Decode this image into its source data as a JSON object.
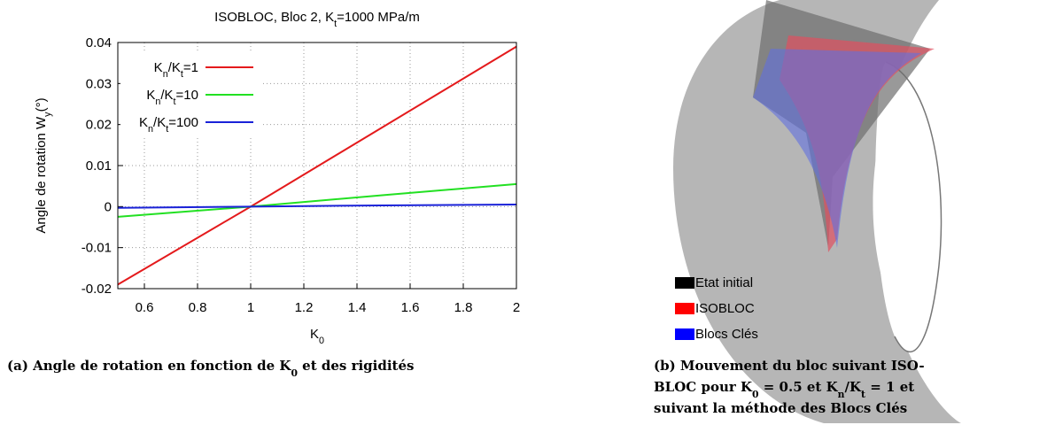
{
  "chart_data": {
    "type": "line",
    "title": "ISOBLOC, Bloc 2, Kt=1000 MPa/m",
    "x_label": "K0",
    "y_label": "Angle de rotation Wy(°)",
    "x": [
      0.5,
      1,
      1.5,
      2
    ],
    "series": [
      {
        "name": "Kn/Kt=1",
        "color": "#e41a1c",
        "values": [
          -0.019,
          0,
          0.0195,
          0.039
        ]
      },
      {
        "name": "Kn/Kt=10",
        "color": "#22e022",
        "values": [
          -0.0025,
          0,
          0.0028,
          0.0055
        ]
      },
      {
        "name": "Kn/Kt=100",
        "color": "#1a22d8",
        "values": [
          -0.0003,
          0,
          0.0003,
          0.0005
        ]
      }
    ],
    "xlim": [
      0.5,
      2
    ],
    "xticks": [
      0.6,
      0.8,
      1,
      1.2,
      1.4,
      1.6,
      1.8,
      2
    ],
    "ylim": [
      -0.02,
      0.04
    ],
    "yticks": [
      -0.02,
      -0.01,
      0,
      0.01,
      0.02,
      0.03,
      0.04
    ],
    "grid": true
  },
  "figure_b": {
    "legend": [
      {
        "label": "Etat initial",
        "color": "#000000"
      },
      {
        "label": "ISOBLOC",
        "color": "#ff0000"
      },
      {
        "label": "Blocs Clés",
        "color": "#0000ff"
      }
    ]
  },
  "captions": {
    "a": [
      "(a) Angle de rotation en fonction de K0 et des rigidités"
    ],
    "b": [
      "(b) Mouvement du bloc suivant ISO-",
      "BLOC pour K0 = 0.5 et Kn/Kt = 1 et",
      "suivant la méthode des Blocs Clés"
    ]
  }
}
